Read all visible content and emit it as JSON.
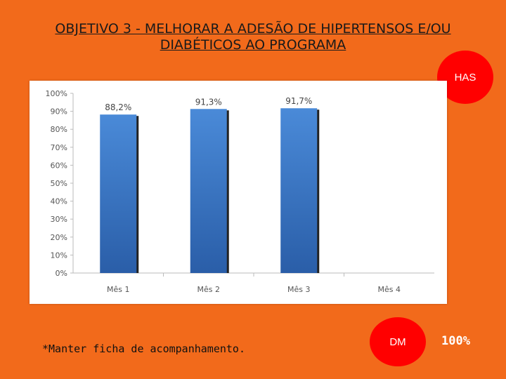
{
  "title_line1": "OBJETIVO 3 - MELHORAR A ADESÃO DE HIPERTENSOS E/OU",
  "title_line2": "DIABÉTICOS AO PROGRAMA",
  "badge_has": "HAS",
  "badge_dm": "DM",
  "dm_value": "100%",
  "note": "*Manter ficha de acompanhamento.",
  "colors": {
    "background": "#f26a1b",
    "bar": "#3a78c8",
    "badge": "#ff0000"
  },
  "chart_data": {
    "type": "bar",
    "categories": [
      "Mês 1",
      "Mês 2",
      "Mês 3",
      "Mês 4"
    ],
    "values": [
      88.2,
      91.3,
      91.7,
      null
    ],
    "data_labels": [
      "88,2%",
      "91,3%",
      "91,7%",
      ""
    ],
    "yticks": [
      "0%",
      "10%",
      "20%",
      "30%",
      "40%",
      "50%",
      "60%",
      "70%",
      "80%",
      "90%",
      "100%"
    ],
    "ylim": [
      0,
      100
    ],
    "grid": false,
    "title": "",
    "xlabel": "",
    "ylabel": ""
  }
}
